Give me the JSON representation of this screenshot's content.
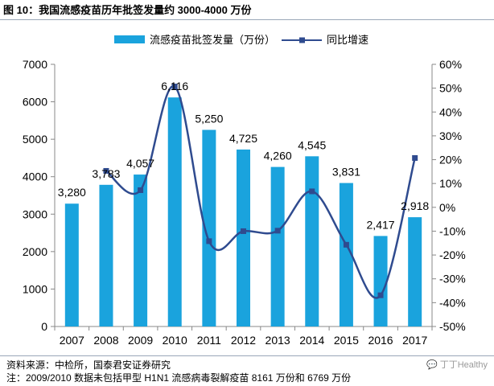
{
  "figure": {
    "title": "图 10：我国流感疫苗历年批签发量约 3000-4000 万份",
    "source": "资料来源：中检所，国泰君安证券研究",
    "note": "注：2009/2010 数据未包括甲型 H1N1 流感病毒裂解疫苗 8161 万份和 6769 万份",
    "watermark": "丁丁Healthy",
    "watermark_icon": "wechat-icon"
  },
  "chart_data": {
    "type": "bar+line",
    "categories": [
      "2007",
      "2008",
      "2009",
      "2010",
      "2011",
      "2012",
      "2013",
      "2014",
      "2015",
      "2016",
      "2017"
    ],
    "series": [
      {
        "name": "流感疫苗批签发量（万份）",
        "type": "bar",
        "axis": "left",
        "color": "#1aa3dd",
        "values": [
          3280,
          3783,
          4057,
          6116,
          5250,
          4725,
          4260,
          4545,
          3831,
          2417,
          2918
        ],
        "labels": [
          "3,280",
          "3,783",
          "4,057",
          "6,116",
          "5,250",
          "4,725",
          "4,260",
          "4,545",
          "3,831",
          "2,417",
          "2,918"
        ]
      },
      {
        "name": "同比增速",
        "type": "line",
        "axis": "right",
        "color": "#2f4b8f",
        "values_pct": [
          null,
          15.3,
          7.2,
          50.7,
          -14.2,
          -10.0,
          -9.8,
          6.7,
          -15.7,
          -36.9,
          20.7
        ]
      }
    ],
    "y_left": {
      "min": 0,
      "max": 7000,
      "ticks": [
        "0",
        "1000",
        "2000",
        "3000",
        "4000",
        "5000",
        "6000",
        "7000"
      ]
    },
    "y_right": {
      "min": -50,
      "max": 60,
      "ticks": [
        "-50%",
        "-40%",
        "-30%",
        "-20%",
        "-10%",
        "0%",
        "10%",
        "20%",
        "30%",
        "40%",
        "50%",
        "60%"
      ]
    },
    "legend": {
      "position": "top",
      "items": [
        "流感疫苗批签发量（万份）",
        "同比增速"
      ]
    },
    "grid": false
  }
}
